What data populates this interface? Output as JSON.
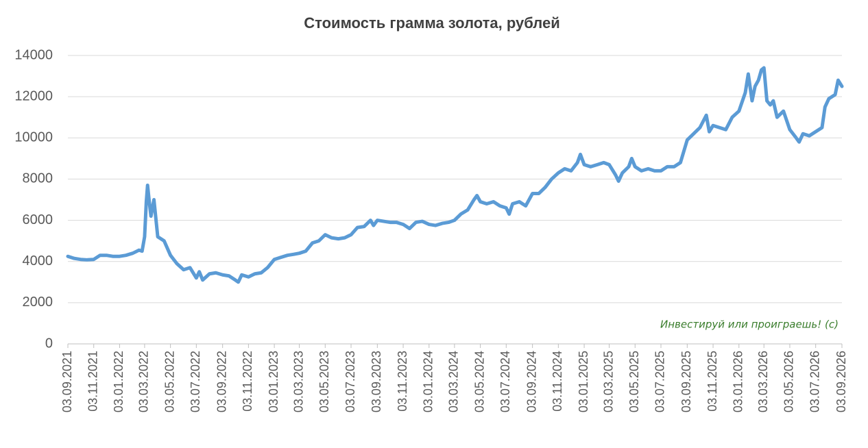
{
  "chart_data": {
    "type": "line",
    "title": "Стоимость грамма золота, рублей",
    "annotation": "Инвестируй или проиграешь! (с)",
    "x": [
      "03.09.2021",
      "18.09.2021",
      "03.10.2021",
      "18.10.2021",
      "03.11.2021",
      "18.11.2021",
      "03.12.2021",
      "18.12.2021",
      "03.01.2022",
      "18.01.2022",
      "03.02.2022",
      "18.02.2022",
      "25.02.2022",
      "03.03.2022",
      "07.03.2022",
      "10.03.2022",
      "14.03.2022",
      "18.03.2022",
      "25.03.2022",
      "03.04.2022",
      "18.04.2022",
      "03.05.2022",
      "18.05.2022",
      "03.06.2022",
      "18.06.2022",
      "03.07.2022",
      "10.07.2022",
      "18.07.2022",
      "03.08.2022",
      "18.08.2022",
      "03.09.2022",
      "18.09.2022",
      "03.10.2022",
      "10.10.2022",
      "18.10.2022",
      "03.11.2022",
      "18.11.2022",
      "03.12.2022",
      "18.12.2022",
      "03.01.2023",
      "18.01.2023",
      "03.02.2023",
      "18.02.2023",
      "03.03.2023",
      "18.03.2023",
      "03.04.2023",
      "18.04.2023",
      "03.05.2023",
      "18.05.2023",
      "03.06.2023",
      "18.06.2023",
      "03.07.2023",
      "18.07.2023",
      "03.08.2023",
      "18.08.2023",
      "25.08.2023",
      "03.09.2023",
      "18.09.2023",
      "03.10.2023",
      "18.10.2023",
      "03.11.2023",
      "18.11.2023",
      "03.12.2023",
      "18.12.2023",
      "03.01.2024",
      "18.01.2024",
      "03.02.2024",
      "18.02.2024",
      "03.03.2024",
      "18.03.2024",
      "03.04.2024",
      "18.04.2024",
      "25.04.2024",
      "03.05.2024",
      "18.05.2024",
      "03.06.2024",
      "18.06.2024",
      "03.07.2024",
      "10.07.2024",
      "18.07.2024",
      "03.08.2024",
      "18.08.2024",
      "03.09.2024",
      "18.09.2024",
      "03.10.2024",
      "18.10.2024",
      "03.11.2024",
      "18.11.2024",
      "03.12.2024",
      "18.12.2024",
      "25.12.2024",
      "03.01.2025",
      "18.01.2025",
      "03.02.2025",
      "18.02.2025",
      "03.03.2025",
      "18.03.2025",
      "25.03.2025",
      "03.04.2025",
      "18.04.2025",
      "25.04.2025",
      "03.05.2025",
      "18.05.2025",
      "03.06.2025",
      "18.06.2025",
      "03.07.2025",
      "18.07.2025",
      "03.08.2025",
      "18.08.2025",
      "03.09.2025",
      "18.09.2025",
      "03.10.2025",
      "18.10.2025",
      "25.10.2025",
      "03.11.2025",
      "18.11.2025",
      "03.12.2025",
      "18.12.2025",
      "03.01.2026",
      "18.01.2026",
      "25.01.2026",
      "03.02.2026",
      "10.02.2026",
      "18.02.2026",
      "25.02.2026",
      "03.03.2026",
      "10.03.2026",
      "18.03.2026",
      "25.03.2026",
      "03.04.2026",
      "18.04.2026",
      "03.05.2026",
      "18.05.2026",
      "25.05.2026",
      "03.06.2026",
      "18.06.2026",
      "03.07.2026",
      "18.07.2026",
      "25.07.2026",
      "03.08.2026",
      "18.08.2026",
      "25.08.2026",
      "03.09.2026"
    ],
    "series": [
      {
        "name": "Стоимость грамма золота",
        "color": "#5b9bd5",
        "values": [
          4250,
          4150,
          4100,
          4080,
          4100,
          4300,
          4300,
          4250,
          4250,
          4300,
          4400,
          4550,
          4500,
          5200,
          6900,
          7700,
          6900,
          6200,
          7000,
          5200,
          5000,
          4300,
          3900,
          3600,
          3700,
          3200,
          3500,
          3100,
          3400,
          3450,
          3350,
          3300,
          3100,
          3000,
          3350,
          3250,
          3400,
          3450,
          3700,
          4100,
          4200,
          4300,
          4350,
          4400,
          4500,
          4900,
          5000,
          5300,
          5150,
          5100,
          5150,
          5300,
          5650,
          5700,
          6000,
          5750,
          6000,
          5950,
          5900,
          5900,
          5800,
          5600,
          5900,
          5950,
          5800,
          5750,
          5850,
          5900,
          6000,
          6300,
          6500,
          7000,
          7200,
          6900,
          6800,
          6900,
          6700,
          6600,
          6300,
          6800,
          6900,
          6700,
          7300,
          7300,
          7600,
          8000,
          8300,
          8500,
          8400,
          8800,
          9200,
          8700,
          8600,
          8700,
          8800,
          8700,
          8200,
          7900,
          8300,
          8600,
          9000,
          8600,
          8400,
          8500,
          8400,
          8400,
          8600,
          8600,
          8800,
          9900,
          10200,
          10500,
          11100,
          10300,
          10600,
          10500,
          10400,
          11000,
          11300,
          12200,
          13100,
          11800,
          12500,
          12800,
          13300,
          13400,
          11800,
          11600,
          11800,
          11000,
          11300,
          10400,
          10000,
          9800,
          10200,
          10100,
          10300,
          10500,
          11500,
          11900,
          12100,
          12800,
          12500
        ]
      }
    ],
    "xlim": [
      "03.09.2021",
      "03.09.2026"
    ],
    "xticks": [
      "03.09.2021",
      "03.11.2021",
      "03.01.2022",
      "03.03.2022",
      "03.05.2022",
      "03.07.2022",
      "03.09.2022",
      "03.11.2022",
      "03.01.2023",
      "03.03.2023",
      "03.05.2023",
      "03.07.2023",
      "03.09.2023",
      "03.11.2023",
      "03.01.2024",
      "03.03.2024",
      "03.05.2024",
      "03.07.2024",
      "03.09.2024",
      "03.11.2024",
      "03.01.2025",
      "03.03.2025",
      "03.05.2025",
      "03.07.2025",
      "03.09.2025",
      "03.11.2025",
      "03.01.2026",
      "03.03.2026",
      "03.05.2026",
      "03.07.2026",
      "03.09.2026"
    ],
    "ylim": [
      0,
      14000
    ],
    "yticks": [
      0,
      2000,
      4000,
      6000,
      8000,
      10000,
      12000,
      14000
    ],
    "grid": true
  }
}
